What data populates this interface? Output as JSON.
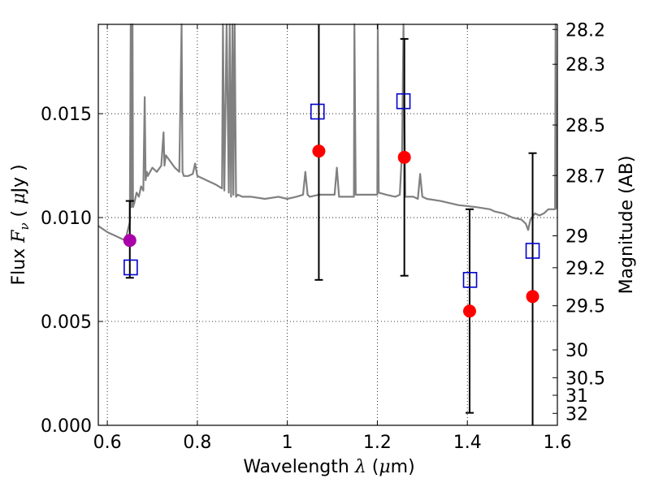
{
  "chart_data": {
    "type": "scatter",
    "xlabel": "Wavelength  λ (μm)",
    "ylabel_left": "Flux  F_ν  ( μJy )",
    "ylabel_right": "Magnitude (AB)",
    "xlim": [
      0.58,
      1.6
    ],
    "ylim": [
      0.0,
      0.0193
    ],
    "x_ticks": [
      0.6,
      0.8,
      1.0,
      1.2,
      1.4,
      1.6
    ],
    "x_tick_labels": [
      "0.6",
      "0.8",
      "1",
      "1.2",
      "1.4",
      "1.6"
    ],
    "y_ticks": [
      0.0,
      0.005,
      0.01,
      0.015
    ],
    "y_tick_labels": [
      "0.000",
      "0.005",
      "0.010",
      "0.015"
    ],
    "right_ticks": [
      28.2,
      28.3,
      28.5,
      28.7,
      29,
      29.2,
      29.5,
      30,
      30.5,
      31,
      32
    ],
    "right_tick_labels": [
      "28.2",
      "28.3",
      "28.5",
      "28.7",
      "29",
      "29.2",
      "29.5",
      "30",
      "30.5",
      "31",
      "32"
    ],
    "grid": true,
    "colors": {
      "model": "#808080",
      "observed": "#ff0000",
      "observed_first": "#aa00aa",
      "model_band": "#0000cc",
      "errorbar": "#000000"
    },
    "series": [
      {
        "marker": "circle",
        "x": [
          0.65,
          1.07,
          1.26,
          1.405,
          1.545
        ],
        "y": [
          0.0089,
          0.0132,
          0.0129,
          0.0055,
          0.0062
        ],
        "yerr_low": [
          0.0071,
          0.007,
          0.0072,
          0.0006,
          0.0
        ],
        "yerr_high": [
          0.0108,
          0.0193,
          0.0186,
          0.0104,
          0.0131
        ]
      },
      {
        "marker": "open-square",
        "x": [
          0.652,
          1.067,
          1.258,
          1.406,
          1.545
        ],
        "y": [
          0.0076,
          0.0151,
          0.0156,
          0.007,
          0.0084
        ]
      },
      {
        "line": true,
        "x": [
          0.58,
          0.6,
          0.62,
          0.64,
          0.65,
          0.652,
          0.653,
          0.656,
          0.657,
          0.66,
          0.665,
          0.67,
          0.675,
          0.68,
          0.683,
          0.685,
          0.688,
          0.69,
          0.7,
          0.71,
          0.72,
          0.725,
          0.727,
          0.73,
          0.74,
          0.75,
          0.76,
          0.765,
          0.767,
          0.77,
          0.78,
          0.79,
          0.795,
          0.8,
          0.82,
          0.84,
          0.855,
          0.857,
          0.86,
          0.865,
          0.87,
          0.872,
          0.875,
          0.878,
          0.88,
          0.883,
          0.886,
          0.89,
          0.9,
          0.92,
          0.95,
          0.98,
          1.0,
          1.02,
          1.035,
          1.04,
          1.045,
          1.05,
          1.07,
          1.09,
          1.105,
          1.11,
          1.115,
          1.12,
          1.14,
          1.148,
          1.149,
          1.152,
          1.2,
          1.201,
          1.203,
          1.22,
          1.24,
          1.25,
          1.255,
          1.258,
          1.262,
          1.28,
          1.29,
          1.295,
          1.3,
          1.31,
          1.34,
          1.38,
          1.42,
          1.45,
          1.46,
          1.48,
          1.5,
          1.52,
          1.53,
          1.535,
          1.54,
          1.55,
          1.56,
          1.57,
          1.58,
          1.59,
          1.595,
          1.596,
          1.598
        ],
        "y": [
          0.0096,
          0.0093,
          0.0091,
          0.0089,
          0.0098,
          0.0193,
          0.0105,
          0.0193,
          0.0105,
          0.0107,
          0.0112,
          0.011,
          0.0115,
          0.0113,
          0.0158,
          0.0118,
          0.0122,
          0.012,
          0.0124,
          0.0122,
          0.0125,
          0.0141,
          0.0125,
          0.013,
          0.0127,
          0.0124,
          0.0122,
          0.0193,
          0.0122,
          0.012,
          0.012,
          0.0121,
          0.0126,
          0.012,
          0.0118,
          0.0116,
          0.0114,
          0.0193,
          0.0113,
          0.0193,
          0.0112,
          0.0193,
          0.011,
          0.0193,
          0.0111,
          0.0193,
          0.011,
          0.0111,
          0.011,
          0.011,
          0.0109,
          0.011,
          0.0109,
          0.011,
          0.0111,
          0.0122,
          0.0111,
          0.011,
          0.0111,
          0.0111,
          0.0111,
          0.0124,
          0.011,
          0.011,
          0.011,
          0.011,
          0.0193,
          0.0111,
          0.0111,
          0.0193,
          0.0112,
          0.0111,
          0.011,
          0.0111,
          0.0133,
          0.0193,
          0.011,
          0.011,
          0.0109,
          0.0121,
          0.011,
          0.0109,
          0.0108,
          0.0106,
          0.0105,
          0.0104,
          0.0103,
          0.0102,
          0.01,
          0.0099,
          0.0097,
          0.0094,
          0.0099,
          0.0102,
          0.0101,
          0.0102,
          0.0104,
          0.0104,
          0.0104,
          0.0193,
          0.0104
        ]
      }
    ]
  }
}
